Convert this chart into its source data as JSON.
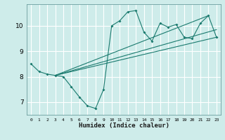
{
  "xlabel": "Humidex (Indice chaleur)",
  "ylabel": "",
  "background_color": "#ceecea",
  "grid_color": "#ffffff",
  "line_color": "#1a7a6e",
  "xlim": [
    -0.5,
    23.5
  ],
  "ylim": [
    6.5,
    10.85
  ],
  "yticks": [
    7,
    8,
    9,
    10
  ],
  "xticks": [
    0,
    1,
    2,
    3,
    4,
    5,
    6,
    7,
    8,
    9,
    10,
    11,
    12,
    13,
    14,
    15,
    16,
    17,
    18,
    19,
    20,
    21,
    22,
    23
  ],
  "series": [
    {
      "x": [
        0,
        1,
        2,
        3,
        4,
        5,
        6,
        7,
        8,
        9,
        10,
        11,
        12,
        13,
        14,
        15,
        16,
        17,
        18,
        19,
        20,
        21,
        22,
        23
      ],
      "y": [
        8.5,
        8.2,
        8.1,
        8.05,
        8.0,
        7.6,
        7.2,
        6.85,
        6.75,
        7.5,
        10.0,
        10.2,
        10.55,
        10.6,
        9.75,
        9.4,
        10.1,
        9.95,
        10.05,
        9.55,
        9.5,
        10.1,
        10.4,
        9.55
      ]
    },
    {
      "x": [
        3,
        23
      ],
      "y": [
        8.05,
        9.55
      ]
    },
    {
      "x": [
        3,
        23
      ],
      "y": [
        8.05,
        9.85
      ]
    },
    {
      "x": [
        3,
        22
      ],
      "y": [
        8.05,
        10.4
      ]
    }
  ]
}
